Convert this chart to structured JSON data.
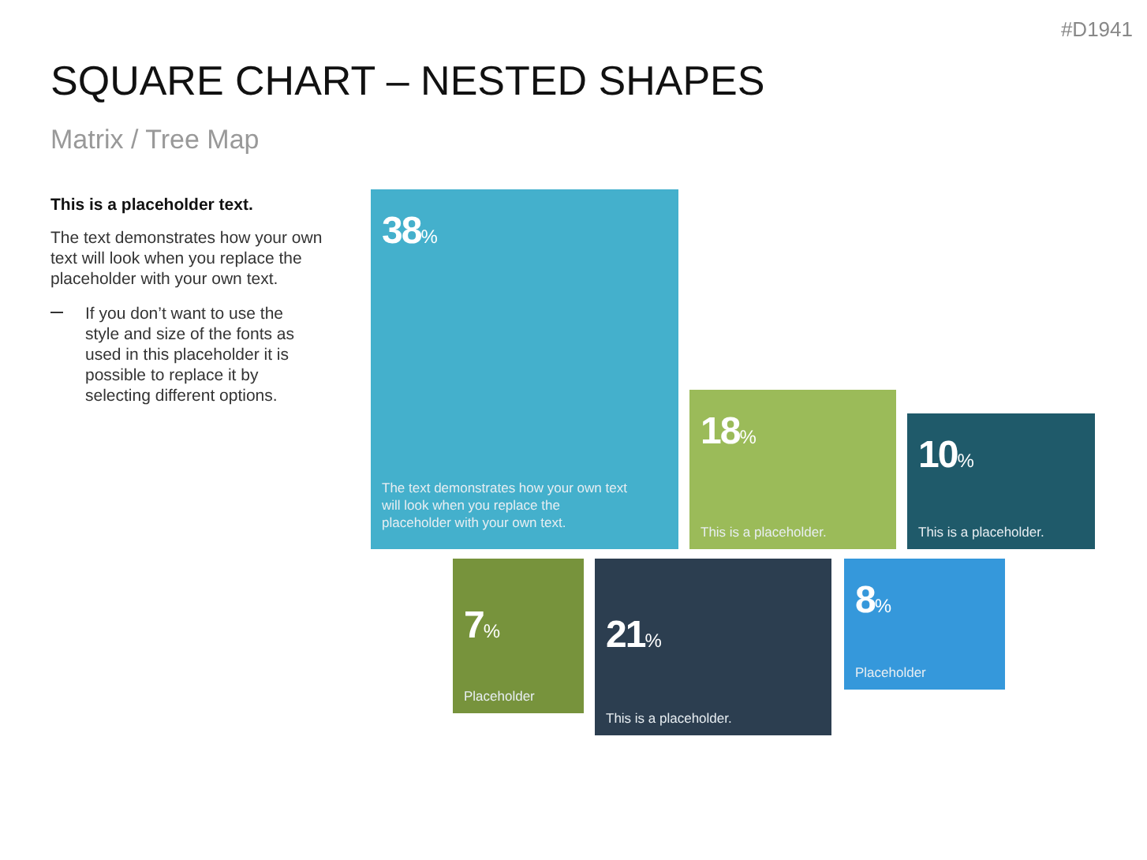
{
  "chart_data": {
    "type": "other",
    "title": "SQUARE CHART – NESTED SHAPES",
    "subtitle": "Matrix / Tree Map",
    "categories": [
      "The text demonstrates how your own text will look when you replace the placeholder with your own text.",
      "This is a placeholder.",
      "This is a placeholder.",
      "Placeholder",
      "This is a placeholder.",
      "Placeholder"
    ],
    "values": [
      38,
      18,
      10,
      7,
      21,
      8
    ],
    "value_labels": [
      "38%",
      "18%",
      "10%",
      "7%",
      "21%",
      "8%"
    ],
    "colors": [
      "#44b0cc",
      "#9bbb59",
      "#1f5a6a",
      "#77933c",
      "#2c3e50",
      "#3598db"
    ],
    "annotations": [
      "This is a placeholder text.",
      "The text demonstrates how your own text will look when you replace the placeholder with your own text.",
      "If you don’t want to use the style and size of the fonts as used in this placeholder it is possible to replace it by selecting different options.",
      "#D1941"
    ]
  }
}
